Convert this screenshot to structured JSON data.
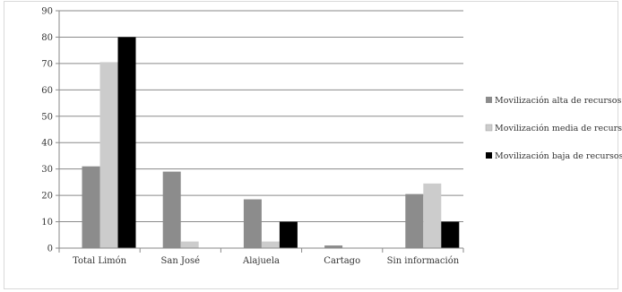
{
  "chart_data": {
    "type": "bar",
    "title": "",
    "xlabel": "",
    "ylabel": "",
    "ylim": [
      0,
      90
    ],
    "yticks": [
      0,
      10,
      20,
      30,
      40,
      50,
      60,
      70,
      80,
      90
    ],
    "grid": true,
    "legend_position": "right",
    "categories": [
      "Total Limón",
      "San José",
      "Alajuela",
      "Cartago",
      "Sin información"
    ],
    "series": [
      {
        "name": "Movilización alta de recursos",
        "color": "#8c8c8c",
        "values": [
          31,
          29,
          18.5,
          1,
          20.5
        ]
      },
      {
        "name": "Movilización media de recursos",
        "color": "#cccccc",
        "values": [
          70.5,
          2.5,
          2.5,
          0,
          24.5
        ]
      },
      {
        "name": "Movilización baja de recursos",
        "color": "#000000",
        "values": [
          80,
          0,
          10,
          0,
          10
        ]
      }
    ]
  }
}
